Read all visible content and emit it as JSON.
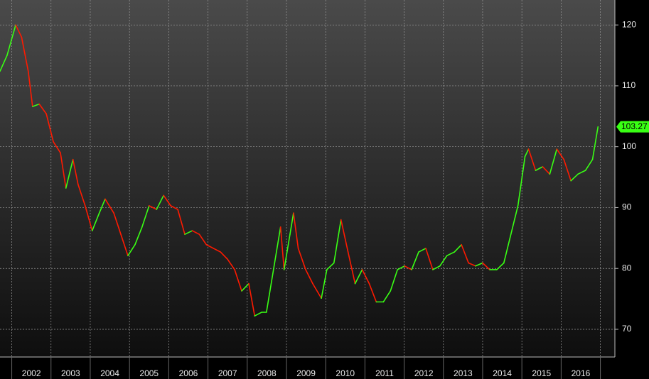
{
  "chart_data": {
    "type": "line",
    "x": [
      2001.7,
      2001.88,
      2002.1,
      2002.25,
      2002.42,
      2002.53,
      2002.7,
      2002.88,
      2003.06,
      2003.24,
      2003.38,
      2003.56,
      2003.69,
      2003.87,
      2004.05,
      2004.23,
      2004.38,
      2004.6,
      2004.78,
      2004.96,
      2005.14,
      2005.32,
      2005.5,
      2005.69,
      2005.87,
      2006.05,
      2006.23,
      2006.41,
      2006.6,
      2006.78,
      2006.96,
      2007.14,
      2007.32,
      2007.5,
      2007.68,
      2007.86,
      2008.04,
      2008.19,
      2008.37,
      2008.49,
      2008.67,
      2008.85,
      2008.94,
      2009.09,
      2009.18,
      2009.3,
      2009.49,
      2009.67,
      2009.89,
      2010.03,
      2010.21,
      2010.39,
      2010.57,
      2010.75,
      2010.93,
      2011.11,
      2011.29,
      2011.47,
      2011.65,
      2011.83,
      2012.01,
      2012.19,
      2012.37,
      2012.55,
      2012.73,
      2012.91,
      2013.09,
      2013.28,
      2013.46,
      2013.64,
      2013.82,
      2014.0,
      2014.18,
      2014.36,
      2014.54,
      2014.72,
      2014.9,
      2015.08,
      2015.17,
      2015.35,
      2015.53,
      2015.71,
      2015.89,
      2016.07,
      2016.25,
      2016.43,
      2016.62,
      2016.8,
      2016.94
    ],
    "values": [
      112.4,
      115,
      120,
      118,
      112.4,
      106.6,
      107,
      105.4,
      100.8,
      99,
      93.2,
      97.9,
      93.8,
      90.3,
      86.2,
      89.1,
      91.4,
      89.1,
      85.6,
      82.1,
      83.9,
      86.8,
      90.3,
      89.7,
      92,
      90.3,
      89.7,
      85.6,
      86.2,
      85.6,
      83.9,
      83.3,
      82.7,
      81.5,
      79.8,
      76.3,
      77.5,
      72.2,
      72.8,
      72.8,
      79.8,
      86.8,
      79.8,
      85.6,
      89.1,
      83.3,
      79.8,
      77.5,
      75.1,
      79.8,
      80.9,
      88,
      82.7,
      77.5,
      79.8,
      77.5,
      74.5,
      74.5,
      76.3,
      79.8,
      80.4,
      79.8,
      82.7,
      83.3,
      79.8,
      80.4,
      82.1,
      82.7,
      83.9,
      80.9,
      80.4,
      80.9,
      79.8,
      79.8,
      80.9,
      85.6,
      90.3,
      98.4,
      99.6,
      96.1,
      96.7,
      95.5,
      99.6,
      97.9,
      94.4,
      95.5,
      96.1,
      97.9,
      103.27
    ],
    "up_color": "#39ff14",
    "down_color": "#ff1a00",
    "xlim": [
      2001.7,
      2017.37
    ],
    "xgrid": [
      2002,
      2003,
      2004,
      2005,
      2006,
      2007,
      2008,
      2009,
      2010,
      2011,
      2012,
      2013,
      2014,
      2015,
      2016,
      2017
    ],
    "xticks": [
      {
        "value": 2002.5,
        "label": "2002"
      },
      {
        "value": 2003.5,
        "label": "2003"
      },
      {
        "value": 2004.5,
        "label": "2004"
      },
      {
        "value": 2005.5,
        "label": "2005"
      },
      {
        "value": 2006.5,
        "label": "2006"
      },
      {
        "value": 2007.5,
        "label": "2007"
      },
      {
        "value": 2008.5,
        "label": "2008"
      },
      {
        "value": 2009.5,
        "label": "2009"
      },
      {
        "value": 2010.5,
        "label": "2010"
      },
      {
        "value": 2011.5,
        "label": "2011"
      },
      {
        "value": 2012.5,
        "label": "2012"
      },
      {
        "value": 2013.5,
        "label": "2013"
      },
      {
        "value": 2014.5,
        "label": "2014"
      },
      {
        "value": 2015.5,
        "label": "2015"
      },
      {
        "value": 2016.5,
        "label": "2016"
      }
    ],
    "ylim": [
      65.45,
      124.1
    ],
    "yticks": [
      70,
      80,
      90,
      100,
      110,
      120
    ],
    "grid": true,
    "last_value_label": true
  }
}
